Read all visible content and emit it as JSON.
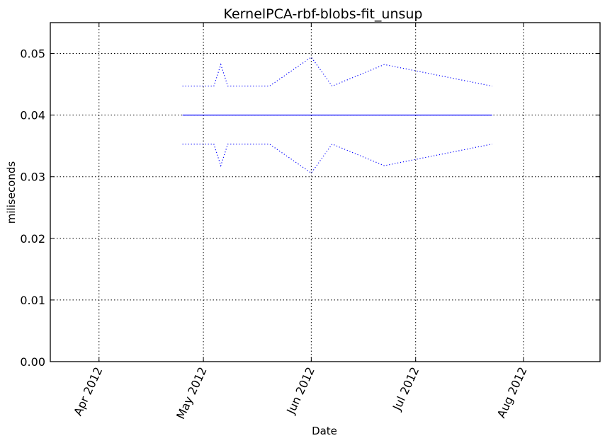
{
  "chart_data": {
    "type": "line",
    "title": "KernelPCA-rbf-blobs-fit_unsup",
    "xlabel": "Date",
    "ylabel": "miliseconds",
    "x_ticks": [
      "2012-04-01",
      "2012-05-01",
      "2012-06-01",
      "2012-07-01",
      "2012-08-01"
    ],
    "x_tick_labels": [
      "Apr 2012",
      "May 2012",
      "Jun 2012",
      "Jul 2012",
      "Aug 2012"
    ],
    "xlim": [
      "2012-03-18",
      "2012-08-23"
    ],
    "ylim": [
      0.0,
      0.055
    ],
    "y_ticks": [
      0.0,
      0.01,
      0.02,
      0.03,
      0.04,
      0.05
    ],
    "y_tick_labels": [
      "0.00",
      "0.01",
      "0.02",
      "0.03",
      "0.04",
      "0.05"
    ],
    "grid": true,
    "series": [
      {
        "style": "solid",
        "color": "#0000ff",
        "x": [
          "2012-04-25",
          "2012-07-23"
        ],
        "y": [
          0.04,
          0.04
        ]
      },
      {
        "style": "dotted",
        "color": "#0000ff",
        "x": [
          "2012-04-25",
          "2012-05-04",
          "2012-05-06",
          "2012-05-08",
          "2012-05-20",
          "2012-06-01",
          "2012-06-07",
          "2012-06-22",
          "2012-07-23"
        ],
        "y": [
          0.0447,
          0.0447,
          0.0482,
          0.0447,
          0.0447,
          0.0494,
          0.0447,
          0.0482,
          0.0447
        ]
      },
      {
        "style": "dotted",
        "color": "#0000ff",
        "x": [
          "2012-04-25",
          "2012-05-04",
          "2012-05-06",
          "2012-05-08",
          "2012-05-20",
          "2012-06-01",
          "2012-06-07",
          "2012-06-22",
          "2012-07-23"
        ],
        "y": [
          0.0353,
          0.0353,
          0.0318,
          0.0353,
          0.0353,
          0.0306,
          0.0353,
          0.0318,
          0.0353
        ]
      }
    ]
  }
}
